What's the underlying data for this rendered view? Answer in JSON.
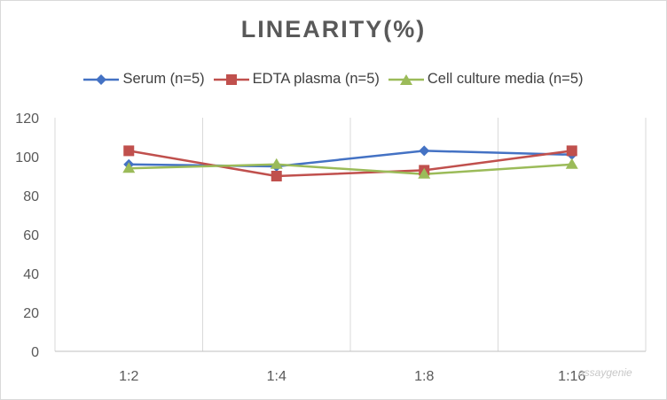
{
  "chart_data": {
    "type": "line",
    "title": "LINEARITY(%)",
    "categories": [
      "1:2",
      "1:4",
      "1:8",
      "1:16"
    ],
    "series": [
      {
        "name": "Serum (n=5)",
        "values": [
          96,
          95,
          103,
          101
        ],
        "color": "#4472c4",
        "marker": "diamond"
      },
      {
        "name": "EDTA plasma (n=5)",
        "values": [
          103,
          90,
          93,
          103
        ],
        "color": "#c0504d",
        "marker": "square"
      },
      {
        "name": "Cell culture media (n=5)",
        "values": [
          94,
          96,
          91,
          96
        ],
        "color": "#9bbb59",
        "marker": "triangle"
      }
    ],
    "ylim": [
      0,
      120
    ],
    "yticks": [
      0,
      20,
      40,
      60,
      80,
      100,
      120
    ],
    "grid": "vertical",
    "legend_position": "top"
  },
  "watermark": "assaygenie"
}
